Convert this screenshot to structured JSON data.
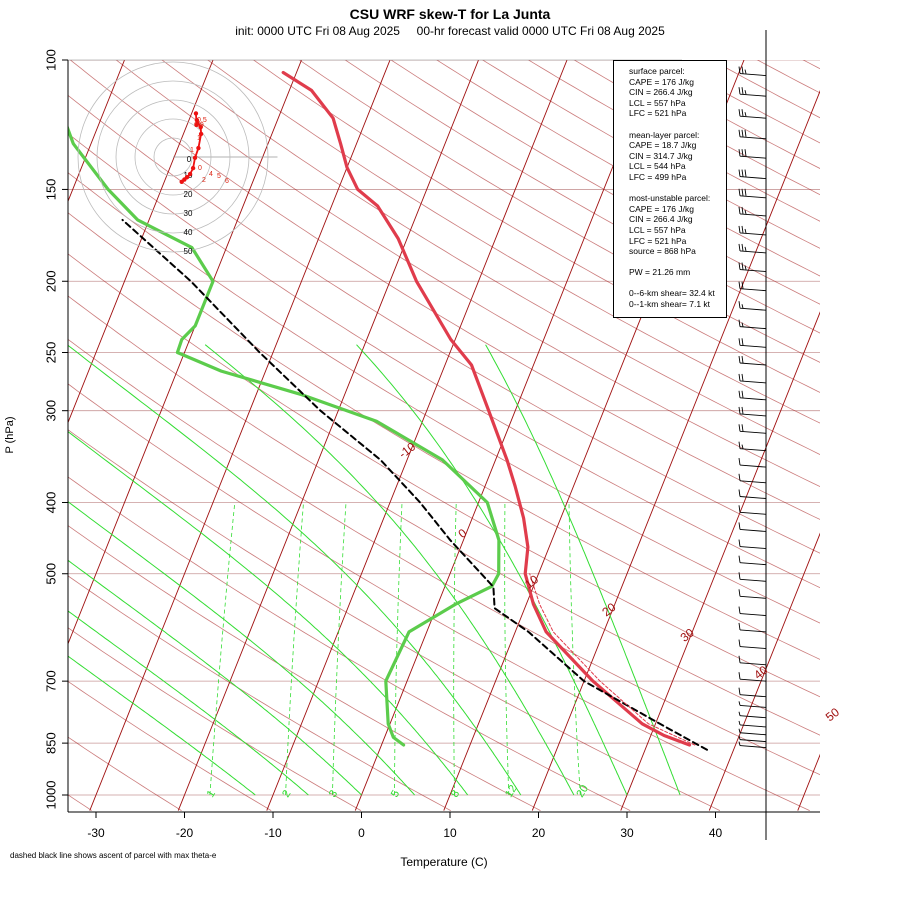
{
  "header": {
    "title": "CSU WRF skew-T for La Junta",
    "subtitle": "init: 0000 UTC Fri 08 Aug 2025     00-hr forecast valid 0000 UTC Fri 08 Aug 2025"
  },
  "footnote": "dashed black line shows ascent of parcel with max theta-e",
  "info": {
    "surface": {
      "heading": "surface parcel:",
      "cape": "CAPE = 176 J/kg",
      "cin": "CIN = 266.4 J/kg",
      "lcl": "LCL = 557 hPa",
      "lfc": "LFC = 521 hPa"
    },
    "mean_layer": {
      "heading": "mean-layer parcel:",
      "cape": "CAPE = 18.7 J/kg",
      "cin": "CIN = 314.7 J/kg",
      "lcl": "LCL = 544 hPa",
      "lfc": "LFC = 499 hPa"
    },
    "most_unstable": {
      "heading": "most-unstable parcel:",
      "cape": "CAPE = 176 J/kg",
      "cin": "CIN = 266.4 J/kg",
      "lcl": "LCL = 557 hPa",
      "lfc": "LFC = 521 hPa",
      "source": "source = 868 hPa"
    },
    "pw": "PW =  21.26 mm",
    "shear6": "0--6-km shear= 32.4 kt",
    "shear1": "0--1-km shear= 7.1 kt"
  },
  "colors": {
    "temperature": "#e03c4c",
    "dewpoint": "#5ccc4c",
    "parcel": "#000000",
    "isotherm": "#a01010",
    "dry_adiabat": "#a01010",
    "moist_adiabat": "#33dd33",
    "mixing_ratio": "#33dd33",
    "isobar": "#c89898",
    "hodograph": "#ee1111"
  },
  "chart_data": {
    "type": "line",
    "title": "CSU WRF skew-T for La Junta",
    "xlabel": "Temperature (C)",
    "ylabel": "P (hPa)",
    "xlim": [
      -33,
      51
    ],
    "ylim": [
      1000,
      100
    ],
    "y_scale": "log",
    "x_ticks": [
      -30,
      -20,
      -10,
      0,
      10,
      20,
      30,
      40
    ],
    "p_ticks": [
      100,
      150,
      200,
      250,
      300,
      400,
      500,
      700,
      850,
      1000
    ],
    "isotherm_labels": [
      "-10",
      "0",
      "10",
      "20",
      "30",
      "40",
      "50"
    ],
    "isotherm_label_values": [
      -10,
      0,
      10,
      20,
      30,
      40,
      50
    ],
    "mixing_ratio_labels": [
      "1",
      "2",
      "3",
      "5",
      "8",
      "12",
      "20"
    ],
    "mixing_ratio_values": [
      1,
      2,
      3,
      5,
      8,
      12,
      20
    ],
    "series": [
      {
        "name": "temperature",
        "points": [
          [
            855,
            34.8
          ],
          [
            830,
            31.5
          ],
          [
            800,
            28.5
          ],
          [
            700,
            21.0
          ],
          [
            600,
            13.5
          ],
          [
            550,
            10.8
          ],
          [
            500,
            8.5
          ],
          [
            460,
            7.6
          ],
          [
            420,
            5.8
          ],
          [
            380,
            3.4
          ],
          [
            350,
            1.3
          ],
          [
            300,
            -3.0
          ],
          [
            260,
            -7.0
          ],
          [
            240,
            -10.5
          ],
          [
            200,
            -17.0
          ],
          [
            175,
            -21.0
          ],
          [
            158,
            -24.8
          ],
          [
            150,
            -27.8
          ],
          [
            140,
            -30.0
          ],
          [
            130,
            -31.8
          ],
          [
            120,
            -33.8
          ],
          [
            110,
            -37.5
          ],
          [
            104,
            -41.5
          ]
        ]
      },
      {
        "name": "dewpoint",
        "points": [
          [
            855,
            2.5
          ],
          [
            835,
            1.0
          ],
          [
            800,
            -0.2
          ],
          [
            700,
            -2.4
          ],
          [
            600,
            -2.0
          ],
          [
            550,
            2.0
          ],
          [
            520,
            5.3
          ],
          [
            500,
            5.5
          ],
          [
            450,
            4.0
          ],
          [
            400,
            1.0
          ],
          [
            350,
            -6.0
          ],
          [
            310,
            -15.2
          ],
          [
            285,
            -25.0
          ],
          [
            265,
            -35.0
          ],
          [
            250,
            -40.8
          ],
          [
            240,
            -40.9
          ],
          [
            230,
            -40.0
          ],
          [
            210,
            -40.0
          ],
          [
            200,
            -40.0
          ],
          [
            180,
            -43.9
          ],
          [
            165,
            -51.3
          ],
          [
            150,
            -56.0
          ],
          [
            130,
            -62.0
          ],
          [
            115,
            -65.4
          ],
          [
            106,
            -68.5
          ]
        ]
      },
      {
        "name": "parcel",
        "points": [
          [
            868,
            37.0
          ],
          [
            800,
            30.5
          ],
          [
            700,
            20.0
          ],
          [
            600,
            11.5
          ],
          [
            557,
            6.6
          ],
          [
            521,
            5.5
          ],
          [
            450,
            -1.5
          ],
          [
            400,
            -6.6
          ],
          [
            350,
            -13.0
          ],
          [
            300,
            -22.0
          ],
          [
            250,
            -31.5
          ],
          [
            200,
            -42.5
          ],
          [
            165,
            -53.0
          ]
        ]
      },
      {
        "name": "virtual temperature",
        "points": [
          [
            855,
            35.4
          ],
          [
            800,
            29.2
          ],
          [
            700,
            21.8
          ],
          [
            600,
            14.3
          ],
          [
            550,
            11.5
          ],
          [
            500,
            9.0
          ]
        ]
      }
    ],
    "hodograph": {
      "rings_kt": [
        10,
        20,
        30,
        40,
        50
      ],
      "points": [
        [
          0.5,
          20.0
        ],
        [
          0.9,
          15.0
        ],
        [
          1.0,
          17.0
        ],
        [
          3.0,
          14.0
        ],
        [
          3.2,
          11.0
        ],
        [
          1.8,
          4.8
        ],
        [
          0.0,
          0.5
        ],
        [
          -1.0,
          -4.0
        ],
        [
          -2.6,
          -6.6
        ],
        [
          -4.2,
          -8.0
        ],
        [
          -5.6,
          -9.0
        ],
        [
          -7.0,
          -10.0
        ]
      ],
      "point_labels": [
        "0.5",
        "0.9",
        "1",
        "1",
        "0",
        "2",
        "4",
        "5",
        "6"
      ]
    },
    "wind_barbs": [
      {
        "p": 105,
        "kt": 25
      },
      {
        "p": 112,
        "kt": 25
      },
      {
        "p": 120,
        "kt": 25
      },
      {
        "p": 128,
        "kt": 30
      },
      {
        "p": 136,
        "kt": 30
      },
      {
        "p": 145,
        "kt": 30
      },
      {
        "p": 154,
        "kt": 30
      },
      {
        "p": 163,
        "kt": 25
      },
      {
        "p": 173,
        "kt": 25
      },
      {
        "p": 183,
        "kt": 25
      },
      {
        "p": 194,
        "kt": 25
      },
      {
        "p": 206,
        "kt": 20
      },
      {
        "p": 219,
        "kt": 15
      },
      {
        "p": 232,
        "kt": 15
      },
      {
        "p": 246,
        "kt": 20
      },
      {
        "p": 260,
        "kt": 20
      },
      {
        "p": 275,
        "kt": 20
      },
      {
        "p": 290,
        "kt": 20
      },
      {
        "p": 305,
        "kt": 20
      },
      {
        "p": 322,
        "kt": 20
      },
      {
        "p": 340,
        "kt": 15
      },
      {
        "p": 358,
        "kt": 10
      },
      {
        "p": 376,
        "kt": 10
      },
      {
        "p": 395,
        "kt": 10
      },
      {
        "p": 415,
        "kt": 10
      },
      {
        "p": 438,
        "kt": 10
      },
      {
        "p": 462,
        "kt": 10
      },
      {
        "p": 486,
        "kt": 10
      },
      {
        "p": 512,
        "kt": 10
      },
      {
        "p": 540,
        "kt": 10
      },
      {
        "p": 570,
        "kt": 10
      },
      {
        "p": 600,
        "kt": 10
      },
      {
        "p": 632,
        "kt": 10
      },
      {
        "p": 665,
        "kt": 10
      },
      {
        "p": 700,
        "kt": 10
      },
      {
        "p": 735,
        "kt": 10
      },
      {
        "p": 760,
        "kt": 5
      },
      {
        "p": 785,
        "kt": 5
      },
      {
        "p": 808,
        "kt": 5
      },
      {
        "p": 828,
        "kt": 5
      },
      {
        "p": 846,
        "kt": 5
      },
      {
        "p": 862,
        "kt": 5
      }
    ]
  }
}
